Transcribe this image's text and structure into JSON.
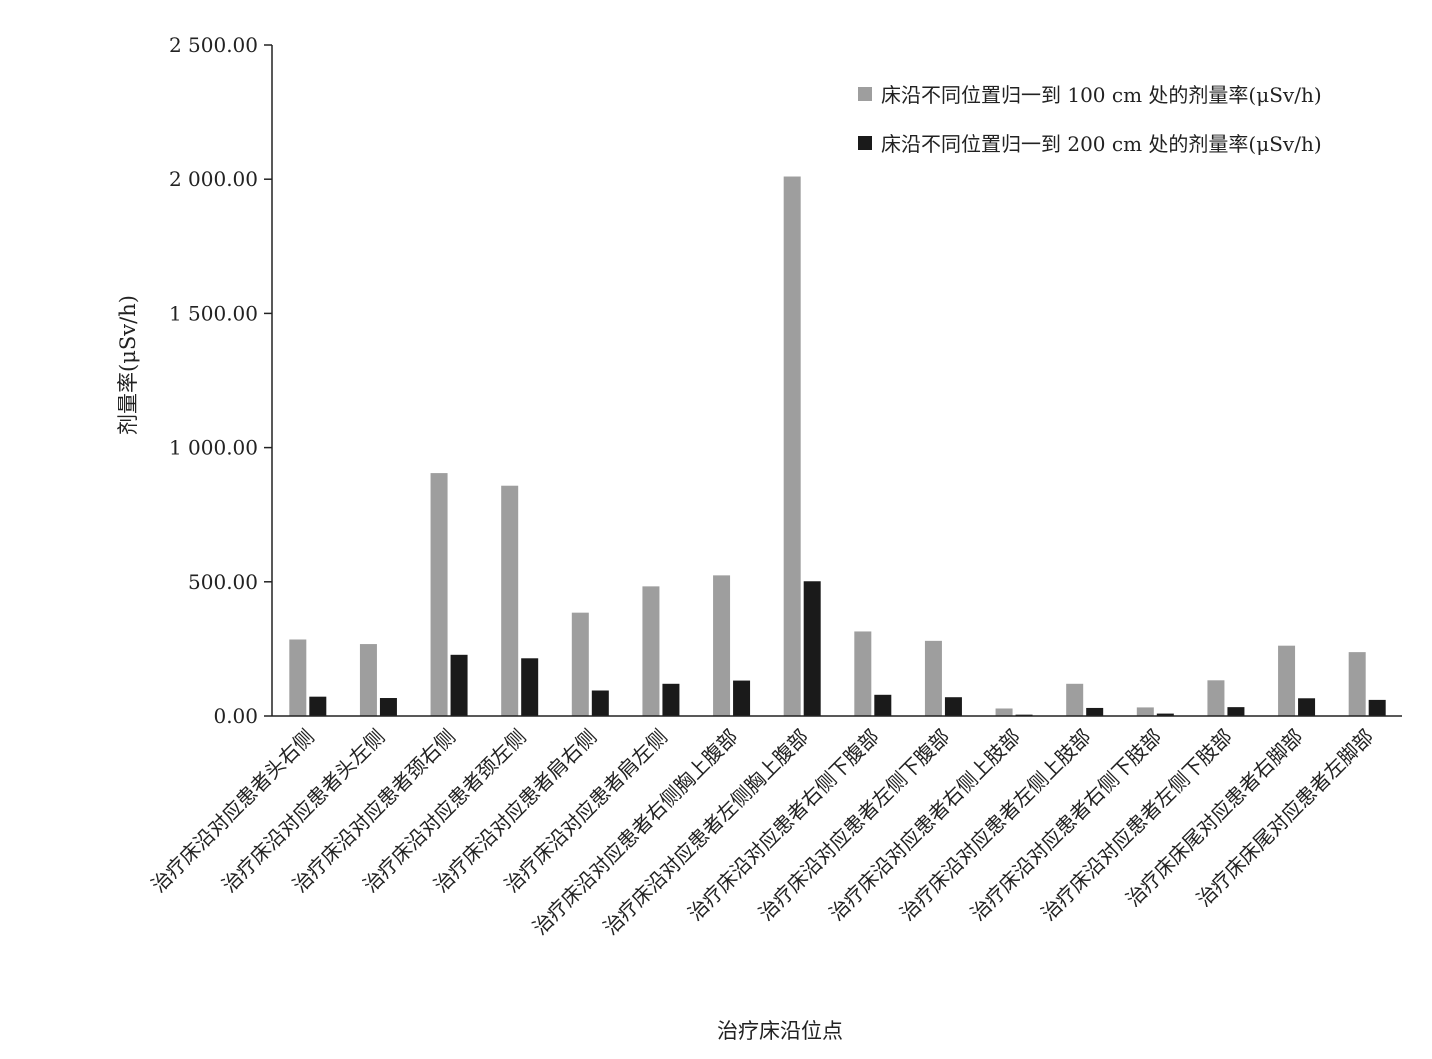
{
  "chart_data": {
    "type": "bar",
    "title": "",
    "xlabel": "治疗床沿位点",
    "ylabel": "剂量率(μSv/h)",
    "ylim": [
      0,
      2500
    ],
    "yticks": [
      {
        "value": 0,
        "label": "0.00"
      },
      {
        "value": 500,
        "label": "500.00"
      },
      {
        "value": 1000,
        "label": "1 000.00"
      },
      {
        "value": 1500,
        "label": "1 500.00"
      },
      {
        "value": 2000,
        "label": "2 000.00"
      },
      {
        "value": 2500,
        "label": "2 500.00"
      }
    ],
    "grid": false,
    "legend_position": "top-right",
    "categories": [
      "治疗床沿对应患者头右侧",
      "治疗床沿对应患者头左侧",
      "治疗床沿对应患者颈右侧",
      "治疗床沿对应患者颈左侧",
      "治疗床沿对应患者肩右侧",
      "治疗床沿对应患者肩左侧",
      "治疗床沿对应患者右侧胸上腹部",
      "治疗床沿对应患者左侧胸上腹部",
      "治疗床沿对应患者右侧下腹部",
      "治疗床沿对应患者左侧下腹部",
      "治疗床沿对应患者右侧上肢部",
      "治疗床沿对应患者左侧上肢部",
      "治疗床沿对应患者右侧下肢部",
      "治疗床沿对应患者左侧下肢部",
      "治疗床床尾对应患者右脚部",
      "治疗床床尾对应患者左脚部"
    ],
    "series": [
      {
        "name": "床沿不同位置归一到 100 cm 处的剂量率(μSv/h)",
        "color": "#9e9e9e",
        "values": [
          285,
          268,
          905,
          858,
          385,
          483,
          524,
          2010,
          315,
          280,
          28,
          120,
          32,
          133,
          262,
          238
        ]
      },
      {
        "name": "床沿不同位置归一到 200 cm 处的剂量率(μSv/h)",
        "color": "#1a1a1a",
        "values": [
          72,
          67,
          228,
          215,
          95,
          120,
          132,
          502,
          79,
          70,
          5,
          30,
          9,
          33,
          66,
          60
        ]
      }
    ]
  }
}
